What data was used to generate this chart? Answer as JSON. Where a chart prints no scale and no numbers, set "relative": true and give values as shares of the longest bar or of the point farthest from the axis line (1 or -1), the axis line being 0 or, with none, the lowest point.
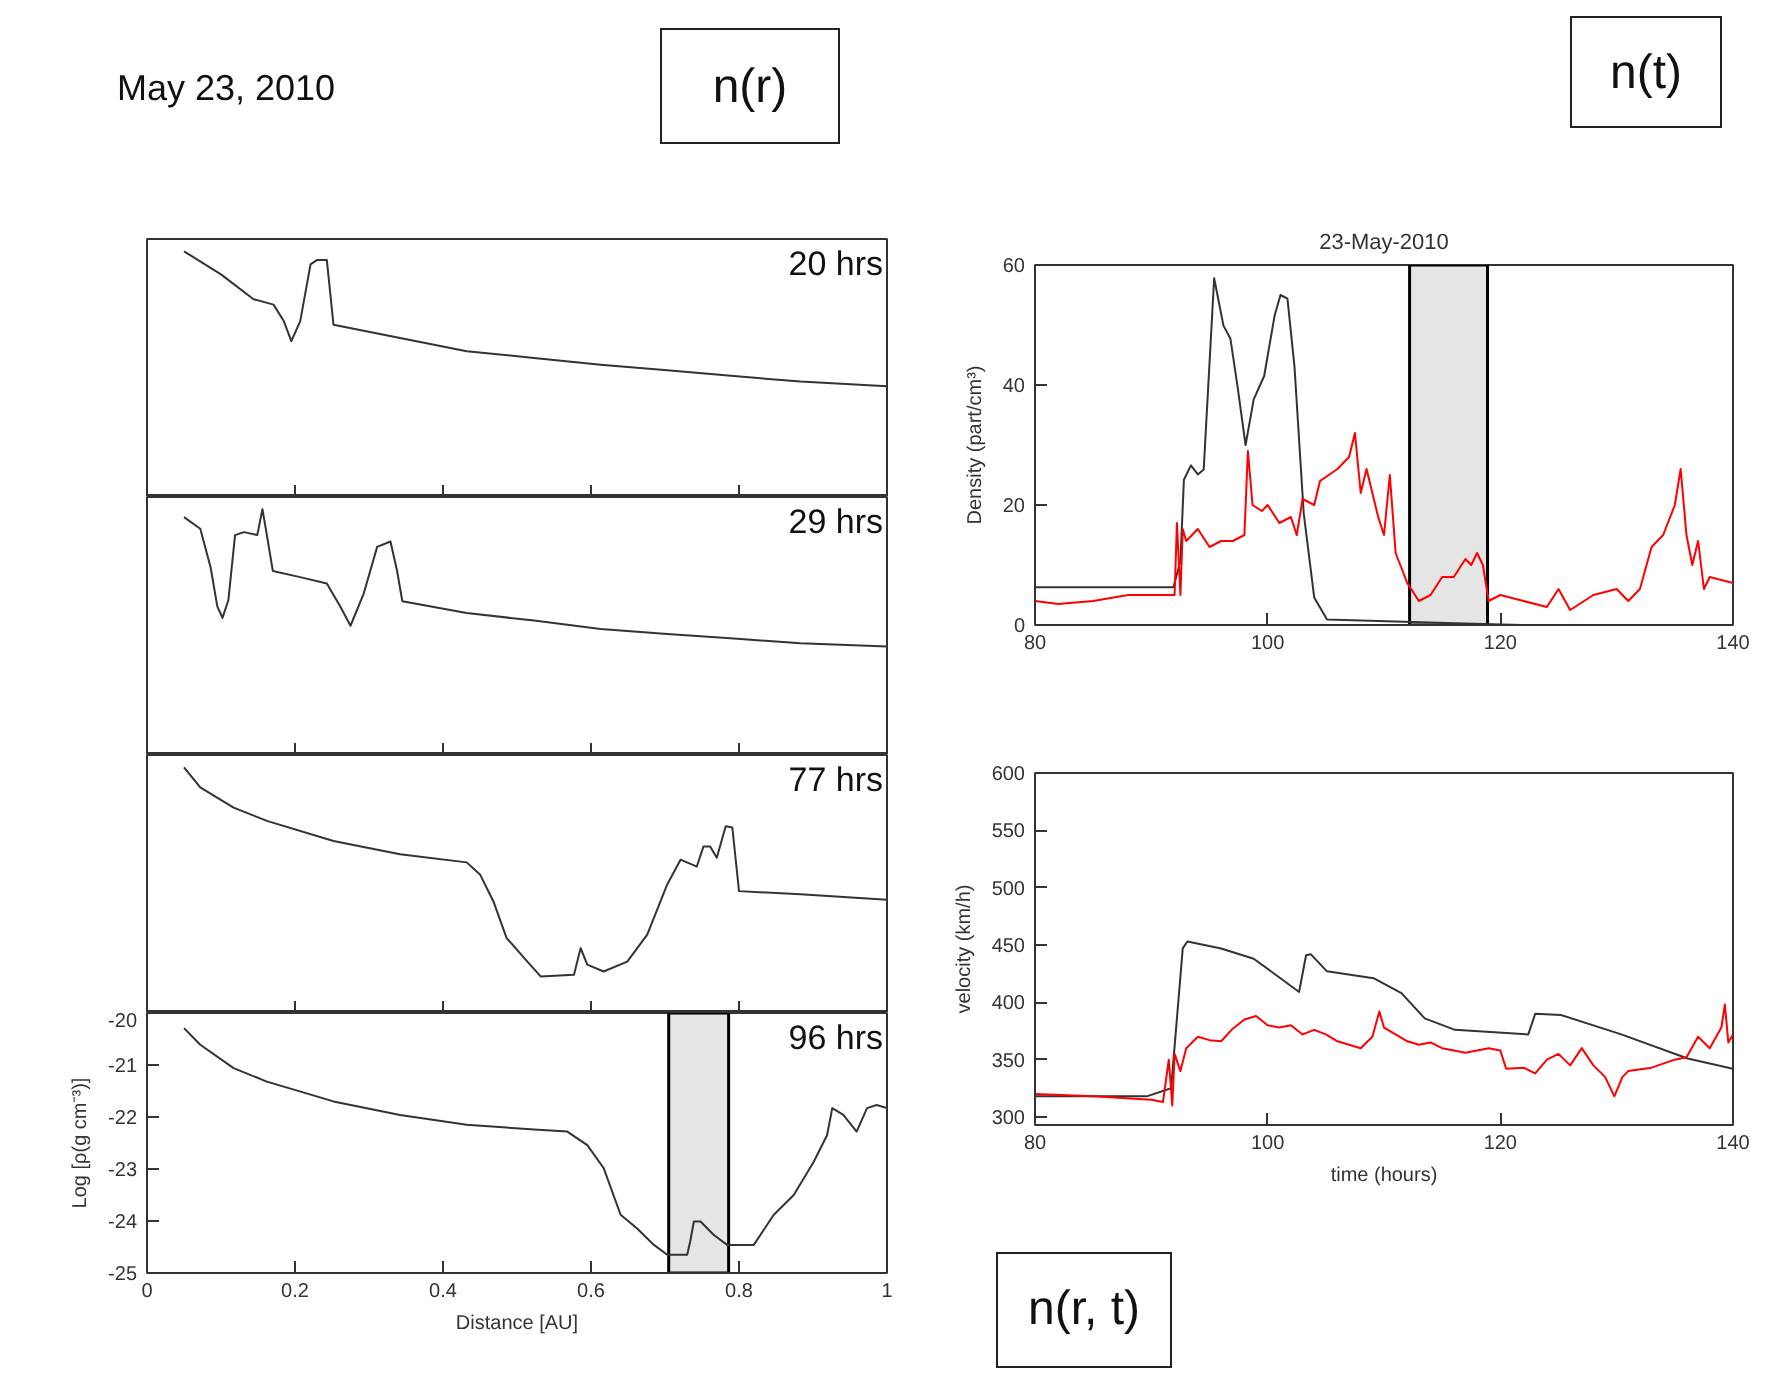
{
  "chart_data": [
    {
      "type": "line",
      "title": "20 hrs",
      "relative": true,
      "tick_labels": false,
      "grid": false,
      "xlim": [
        0,
        1
      ],
      "xticks": [
        0,
        0.2,
        0.4,
        0.6,
        0.8,
        1
      ],
      "annotations": [
        "May 23, 2010",
        "n(r)"
      ],
      "series": [
        {
          "color": "#333333",
          "x": [
            0.05,
            0.1,
            0.144,
            0.171,
            0.185,
            0.195,
            0.207,
            0.221,
            0.23,
            0.243,
            0.252,
            0.342,
            0.432,
            0.523,
            0.613,
            0.703,
            0.793,
            0.883,
            1.0
          ],
          "values": [
            1.0,
            0.906,
            0.805,
            0.783,
            0.715,
            0.634,
            0.715,
            0.947,
            0.965,
            0.965,
            0.701,
            0.647,
            0.593,
            0.566,
            0.538,
            0.516,
            0.492,
            0.47,
            0.451
          ]
        }
      ]
    },
    {
      "type": "line",
      "title": "29 hrs",
      "relative": true,
      "tick_labels": false,
      "grid": false,
      "xlim": [
        0,
        1
      ],
      "xticks": [
        0,
        0.2,
        0.4,
        0.6,
        0.8,
        1
      ],
      "series": [
        {
          "color": "#333333",
          "x": [
            0.05,
            0.072,
            0.086,
            0.095,
            0.102,
            0.11,
            0.119,
            0.131,
            0.149,
            0.156,
            0.162,
            0.17,
            0.207,
            0.243,
            0.261,
            0.275,
            0.293,
            0.311,
            0.329,
            0.338,
            0.345,
            0.432,
            0.523,
            0.613,
            0.703,
            0.793,
            0.883,
            1.0
          ],
          "values": [
            0.968,
            0.921,
            0.763,
            0.605,
            0.558,
            0.631,
            0.895,
            0.907,
            0.895,
            1.0,
            0.895,
            0.749,
            0.724,
            0.698,
            0.605,
            0.526,
            0.658,
            0.847,
            0.869,
            0.749,
            0.626,
            0.578,
            0.547,
            0.513,
            0.492,
            0.474,
            0.455,
            0.442
          ]
        }
      ]
    },
    {
      "type": "line",
      "title": "77 hrs",
      "relative": true,
      "tick_labels": false,
      "grid": false,
      "xlim": [
        0,
        1
      ],
      "xticks": [
        0,
        0.2,
        0.4,
        0.6,
        0.8,
        1
      ],
      "series": [
        {
          "color": "#333333",
          "x": [
            0.05,
            0.072,
            0.117,
            0.162,
            0.252,
            0.342,
            0.432,
            0.45,
            0.468,
            0.486,
            0.514,
            0.532,
            0.577,
            0.586,
            0.595,
            0.617,
            0.649,
            0.676,
            0.703,
            0.721,
            0.743,
            0.752,
            0.761,
            0.77,
            0.782,
            0.791,
            0.8,
            0.883,
            1.0
          ],
          "values": [
            1.0,
            0.918,
            0.836,
            0.782,
            0.7,
            0.646,
            0.613,
            0.564,
            0.455,
            0.305,
            0.209,
            0.149,
            0.156,
            0.264,
            0.197,
            0.169,
            0.209,
            0.319,
            0.523,
            0.624,
            0.596,
            0.678,
            0.678,
            0.632,
            0.76,
            0.755,
            0.496,
            0.483,
            0.461
          ]
        }
      ]
    },
    {
      "type": "line",
      "title": "96 hrs",
      "xlabel": "Distance [AU]",
      "ylabel": "Log [ρ(g cm⁻³)]",
      "grid": false,
      "xlim": [
        0,
        1
      ],
      "xticks": [
        0,
        0.2,
        0.4,
        0.6,
        0.8,
        1
      ],
      "ylim": [
        -25,
        -20
      ],
      "yticks": [
        -25,
        -24,
        -23,
        -22,
        -21,
        -20
      ],
      "bands": [
        {
          "axis": "x",
          "from": 0.705,
          "to": 0.786,
          "color": "#000000"
        }
      ],
      "series": [
        {
          "color": "#333333",
          "x": [
            0.05,
            0.072,
            0.117,
            0.162,
            0.252,
            0.342,
            0.432,
            0.523,
            0.568,
            0.595,
            0.617,
            0.64,
            0.662,
            0.685,
            0.703,
            0.73,
            0.734,
            0.739,
            0.748,
            0.766,
            0.784,
            0.82,
            0.847,
            0.874,
            0.901,
            0.919,
            0.926,
            0.941,
            0.959,
            0.973,
            0.986,
            1.0
          ],
          "values": [
            -20.29,
            -20.61,
            -21.06,
            -21.32,
            -21.7,
            -21.96,
            -22.15,
            -22.24,
            -22.28,
            -22.54,
            -22.98,
            -23.88,
            -24.14,
            -24.46,
            -24.65,
            -24.65,
            -24.4,
            -24.01,
            -24.01,
            -24.27,
            -24.46,
            -24.46,
            -23.88,
            -23.5,
            -22.86,
            -22.35,
            -21.83,
            -21.96,
            -22.28,
            -21.83,
            -21.77,
            -21.83
          ]
        }
      ]
    },
    {
      "type": "line",
      "title": "23-May-2010",
      "ylabel": "Density (part/cm³)",
      "grid": false,
      "xlim": [
        80,
        140
      ],
      "xticks": [
        80,
        100,
        120,
        140
      ],
      "ylim": [
        0,
        60
      ],
      "yticks": [
        0,
        20,
        40,
        60
      ],
      "annotations": [
        "n(t)"
      ],
      "bands": [
        {
          "axis": "x",
          "from": 112.2,
          "to": 118.9,
          "color": "#000000"
        }
      ],
      "series": [
        {
          "color": "#333333",
          "x": [
            80,
            91.9,
            92.5,
            92.8,
            93.4,
            94.0,
            94.5,
            95.4,
            96.2,
            96.8,
            97.4,
            98.1,
            98.8,
            99.7,
            100.6,
            101.1,
            101.7,
            102.3,
            103.1,
            104.0,
            105.1,
            116.1,
            121.8
          ],
          "values": [
            6.3,
            6.3,
            10.7,
            24.2,
            26.6,
            25.1,
            25.9,
            57.8,
            49.9,
            47.7,
            39.9,
            30.0,
            37.6,
            41.5,
            51.6,
            55.0,
            54.4,
            43.2,
            18.6,
            4.6,
            0.9,
            0.3,
            0
          ]
        },
        {
          "color": "#ff0000",
          "x": [
            80,
            82,
            85,
            88,
            91,
            92,
            92.2,
            92.5,
            92.7,
            93,
            94,
            95,
            96,
            97,
            98,
            98.3,
            98.7,
            99.5,
            100,
            101,
            102,
            102.5,
            103,
            104,
            104.5,
            106,
            107,
            107.5,
            108,
            108.5,
            109.5,
            110,
            110.5,
            111,
            112,
            113,
            114,
            115,
            116,
            117,
            117.5,
            118,
            118.5,
            119,
            120,
            122,
            124,
            125,
            126,
            128,
            130,
            131,
            132,
            133,
            134,
            135,
            135.5,
            136,
            136.5,
            137,
            137.5,
            138,
            140
          ],
          "values": [
            4,
            3.5,
            4,
            5,
            5,
            5,
            17,
            5,
            16,
            14,
            16,
            13,
            14,
            14,
            15,
            29,
            20,
            19,
            20,
            17,
            18,
            15,
            21,
            20,
            24,
            26,
            28,
            32,
            22,
            26,
            18,
            15,
            25,
            12,
            7,
            4,
            5,
            8,
            8,
            11,
            10,
            12,
            10,
            4,
            5,
            4,
            3,
            6,
            2.5,
            5,
            6,
            4,
            6,
            13,
            15,
            20,
            26,
            15,
            10,
            14,
            6,
            8,
            7
          ]
        }
      ]
    },
    {
      "type": "line",
      "xlabel": "time (hours)",
      "ylabel": "velocity (km/h)",
      "grid": false,
      "xlim": [
        80,
        140
      ],
      "xticks": [
        80,
        100,
        120,
        140
      ],
      "ylim": [
        293,
        600
      ],
      "yticks": [
        300,
        350,
        400,
        450,
        500,
        550,
        600
      ],
      "annotations": [
        "n(r, t)"
      ],
      "series": [
        {
          "color": "#333333",
          "x": [
            80,
            89.6,
            91.7,
            92.7,
            93.1,
            96.0,
            98.8,
            101.1,
            102.7,
            103.3,
            103.7,
            105.1,
            109.1,
            111.5,
            113.5,
            116.1,
            122.4,
            123.0,
            125.2,
            130.4,
            136.1,
            140
          ],
          "values": [
            318,
            318,
            325,
            447,
            453,
            447,
            438,
            421,
            409,
            441,
            442,
            427,
            421,
            408,
            386,
            376,
            372,
            390,
            389,
            372,
            351,
            342
          ]
        },
        {
          "color": "#ff0000",
          "x": [
            80,
            85,
            90,
            91,
            91.5,
            91.8,
            92,
            92.5,
            93,
            94,
            95,
            96,
            97,
            98,
            99,
            100,
            101,
            102,
            103,
            104,
            105,
            106,
            107,
            108,
            109,
            109.6,
            110,
            111,
            112,
            113,
            114,
            115,
            117,
            119,
            120,
            120.5,
            122,
            123,
            124,
            125,
            126,
            127,
            128,
            129,
            129.8,
            130.5,
            131,
            133,
            135,
            136,
            137,
            138,
            139,
            139.3,
            139.6,
            140
          ],
          "values": [
            320,
            318,
            315,
            313,
            350,
            310,
            355,
            340,
            360,
            370,
            367,
            366,
            377,
            385,
            388,
            380,
            378,
            380,
            372,
            376,
            372,
            366,
            363,
            360,
            370,
            392,
            378,
            372,
            366,
            363,
            365,
            360,
            356,
            360,
            358,
            342,
            343,
            338,
            350,
            355,
            345,
            360,
            345,
            335,
            318,
            335,
            340,
            343,
            350,
            352,
            370,
            360,
            378,
            398,
            365,
            372
          ]
        }
      ]
    }
  ]
}
